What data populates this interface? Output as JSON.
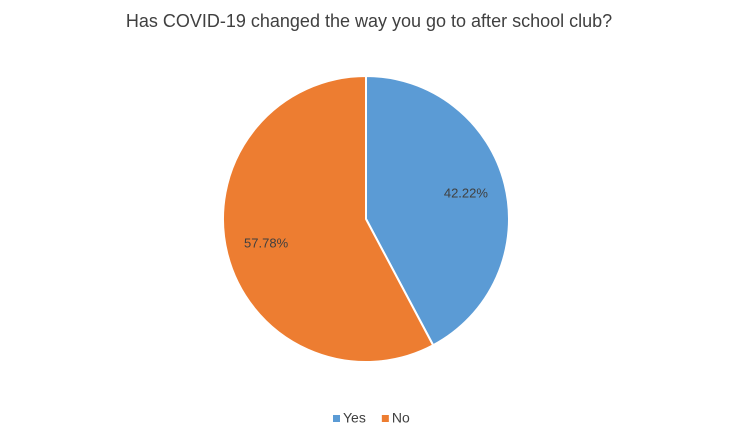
{
  "chart_data": {
    "type": "pie",
    "title": "Has COVID-19 changed the way you go to after school club?",
    "categories": [
      "Yes",
      "No"
    ],
    "values": [
      42.22,
      57.78
    ],
    "value_labels": [
      "42.22%",
      "57.78%"
    ],
    "colors": [
      "#5b9bd5",
      "#ed7d31"
    ],
    "legend": "bottom"
  }
}
